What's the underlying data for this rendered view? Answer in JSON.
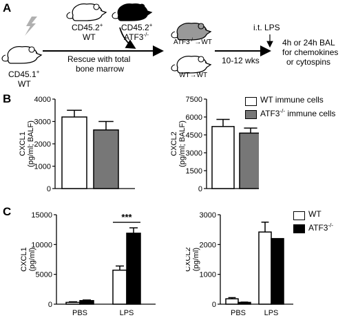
{
  "panels": {
    "A": {
      "label": "A",
      "recipient": {
        "line1": "CD45.1",
        "sup1": "+",
        "line2": "WT"
      },
      "donor_wt": {
        "line1": "CD45.2",
        "sup1": "+",
        "line2": "WT"
      },
      "donor_ko": {
        "line1": "CD45.2",
        "sup1": "+",
        "line2": "ATF3",
        "sup2": "-/-"
      },
      "rescue_text": "Rescue with total",
      "rescue_text2": "bone marrow",
      "chimera_ko": {
        "text": "ATF3",
        "sup": "-/-",
        "suffix": "→WT"
      },
      "chimera_wt": {
        "text": "WT→WT"
      },
      "time": "10-12 wks",
      "treatment": "i.t. LPS",
      "outcome_line1": "4h or 24h BAL",
      "outcome_line2": "for chemokines",
      "outcome_line3": "or cytospins",
      "icons": [
        "lightning-icon",
        "mouse-icon"
      ]
    },
    "B": {
      "label": "B",
      "legend": [
        {
          "text": "WT immune cells",
          "color": "#ffffff"
        },
        {
          "text": "ATF3",
          "sup": "-/-",
          "suffix": " immune cells",
          "color": "#777777"
        }
      ]
    },
    "C": {
      "label": "C",
      "legend": [
        {
          "text": "WT",
          "color": "#ffffff"
        },
        {
          "text": "ATF3",
          "sup": "-/-",
          "color": "#000000"
        }
      ]
    }
  },
  "chart_data": [
    {
      "id": "B1",
      "type": "bar",
      "categories": [
        ""
      ],
      "series": [
        {
          "name": "WT immune cells",
          "values": [
            3200
          ],
          "errors": [
            300
          ],
          "color": "#ffffff"
        },
        {
          "name": "ATF3-/- immune cells",
          "values": [
            2620
          ],
          "errors": [
            380
          ],
          "color": "#777777"
        }
      ],
      "ylabel": "CXCL1",
      "ylabel2": "(pg/ml; BALF)",
      "ylim": [
        0,
        4000
      ],
      "yticks": [
        0,
        1000,
        2000,
        3000,
        4000
      ]
    },
    {
      "id": "B2",
      "type": "bar",
      "categories": [
        ""
      ],
      "series": [
        {
          "name": "WT immune cells",
          "values": [
            5200
          ],
          "errors": [
            600
          ],
          "color": "#ffffff"
        },
        {
          "name": "ATF3-/- immune cells",
          "values": [
            4650
          ],
          "errors": [
            420
          ],
          "color": "#777777"
        }
      ],
      "ylabel": "CXCL2",
      "ylabel2": "(pg/ml; BALF)",
      "ylim": [
        0,
        7500
      ],
      "yticks": [
        0,
        1500,
        3000,
        4500,
        6000,
        7500
      ]
    },
    {
      "id": "C1",
      "type": "bar",
      "categories": [
        "PBS",
        "LPS"
      ],
      "series": [
        {
          "name": "WT",
          "values": [
            300,
            5700
          ],
          "errors": [
            100,
            700
          ],
          "color": "#ffffff"
        },
        {
          "name": "ATF3-/-",
          "values": [
            600,
            11900
          ],
          "errors": [
            100,
            900
          ],
          "color": "#000000"
        }
      ],
      "ylabel": "CXCL1",
      "ylabel2": "(pg/ml)",
      "ylim": [
        0,
        15000
      ],
      "yticks": [
        0,
        5000,
        10000,
        15000
      ],
      "annotation": {
        "text": "***",
        "category": "LPS"
      }
    },
    {
      "id": "C2",
      "type": "bar",
      "categories": [
        "PBS",
        "LPS"
      ],
      "series": [
        {
          "name": "WT",
          "values": [
            180,
            2420
          ],
          "errors": [
            40,
            330
          ],
          "color": "#ffffff"
        },
        {
          "name": "ATF3-/-",
          "values": [
            60,
            2200
          ],
          "errors": [
            10,
            0
          ],
          "color": "#000000"
        }
      ],
      "ylabel": "CXCL2",
      "ylabel2": "(pg/ml)",
      "ylim": [
        0,
        3000
      ],
      "yticks": [
        0,
        1000,
        2000,
        3000
      ]
    }
  ]
}
